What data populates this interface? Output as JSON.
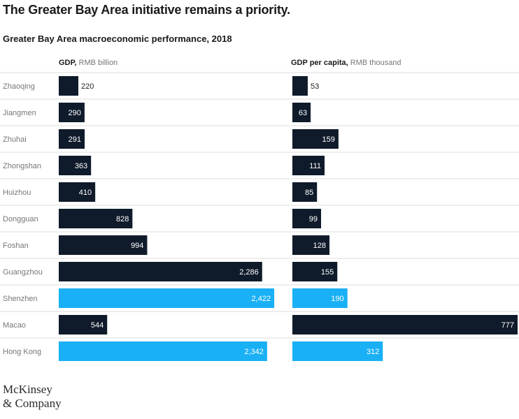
{
  "headline": "The Greater Bay Area initiative remains a priority.",
  "subtitle": "Greater Bay Area macroeconomic performance, 2018",
  "logo": {
    "line1": "McKinsey",
    "line2": "& Company"
  },
  "colors": {
    "dark": "#0f1b2b",
    "highlight": "#1ab0f5",
    "grid": "#dddddd",
    "label": "#777777"
  },
  "chart_data": [
    {
      "type": "bar",
      "orientation": "horizontal",
      "header_bold": "GDP,",
      "header_unit": "RMB billion",
      "categories": [
        "Zhaoqing",
        "Jiangmen",
        "Zhuhai",
        "Zhongshan",
        "Huizhou",
        "Dongguan",
        "Foshan",
        "Guangzhou",
        "Shenzhen",
        "Macao",
        "Hong Kong"
      ],
      "values": [
        220,
        290,
        291,
        363,
        410,
        828,
        994,
        2286,
        2422,
        544,
        2342
      ],
      "value_labels": [
        "220",
        "290",
        "291",
        "363",
        "410",
        "828",
        "994",
        "2,286",
        "2,422",
        "544",
        "2,342"
      ],
      "highlight": [
        "Shenzhen",
        "Hong Kong"
      ],
      "xlim": [
        0,
        2500
      ]
    },
    {
      "type": "bar",
      "orientation": "horizontal",
      "header_bold": "GDP per capita,",
      "header_unit": "RMB thousand",
      "categories": [
        "Zhaoqing",
        "Jiangmen",
        "Zhuhai",
        "Zhongshan",
        "Huizhou",
        "Dongguan",
        "Foshan",
        "Guangzhou",
        "Shenzhen",
        "Macao",
        "Hong Kong"
      ],
      "values": [
        53,
        63,
        159,
        111,
        85,
        99,
        128,
        155,
        190,
        777,
        312
      ],
      "value_labels": [
        "53",
        "63",
        "159",
        "111",
        "85",
        "99",
        "128",
        "155",
        "190",
        "777",
        "312"
      ],
      "highlight": [
        "Shenzhen",
        "Hong Kong"
      ],
      "xlim": [
        0,
        777
      ]
    }
  ]
}
